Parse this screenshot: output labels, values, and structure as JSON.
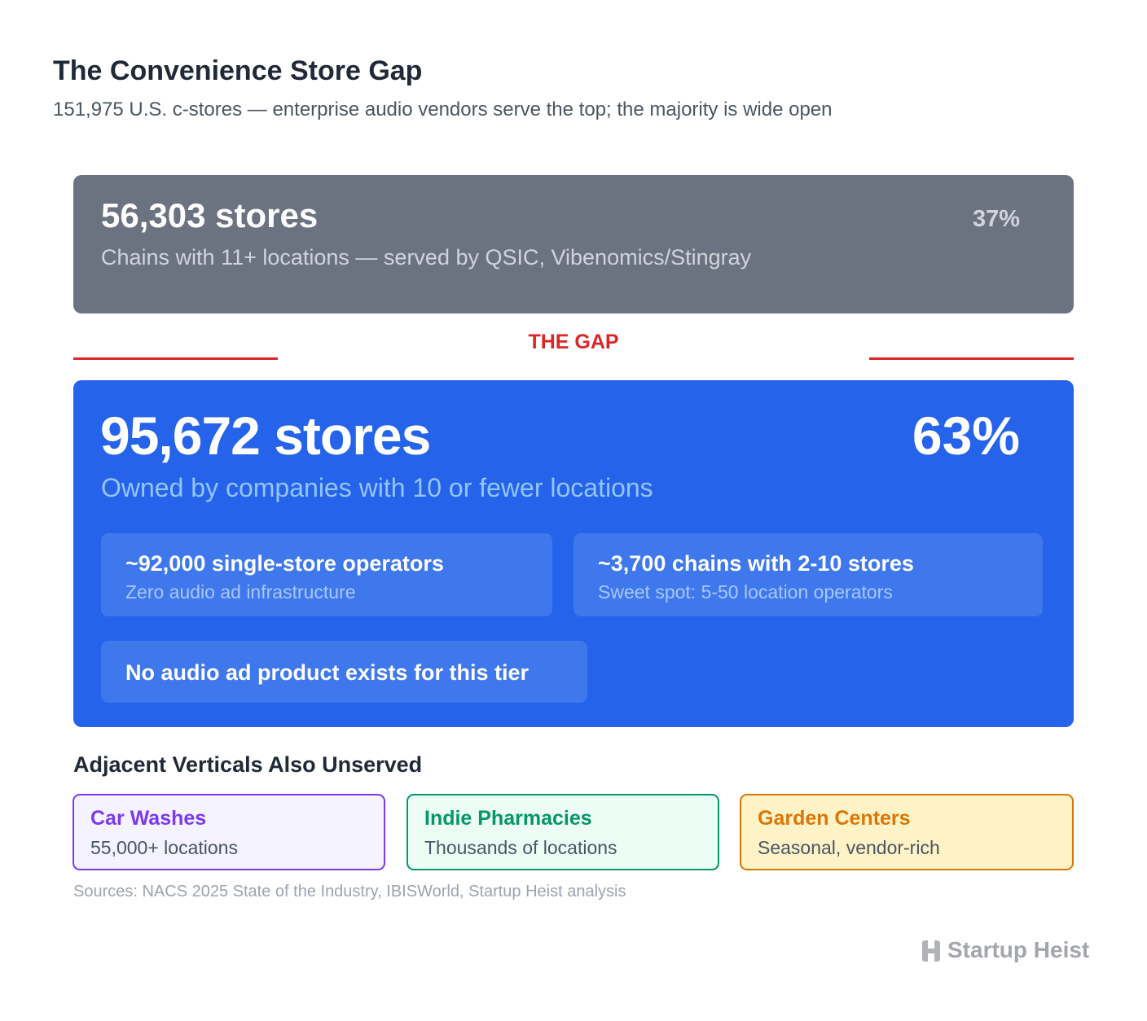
{
  "header": {
    "title": "The Convenience Store Gap",
    "subtitle": "151,975 U.S. c-stores — enterprise audio vendors serve the top; the majority is wide open"
  },
  "top_tier": {
    "count": "56,303 stores",
    "share": "37%",
    "description": "Chains with 11+ locations — served by QSIC, Vibenomics/Stingray"
  },
  "gap_label": "THE GAP",
  "bottom_tier": {
    "count": "95,672 stores",
    "share": "63%",
    "description": "Owned by companies with 10 or fewer locations",
    "cards": [
      {
        "title": "~92,000 single-store operators",
        "note": "Zero audio ad infrastructure"
      },
      {
        "title": "~3,700 chains with 2-10 stores",
        "note": "Sweet spot: 5-50 location operators"
      },
      {
        "title": "No audio ad product exists for this tier"
      }
    ]
  },
  "adjacent": {
    "heading": "Adjacent Verticals Also Unserved",
    "items": [
      {
        "name": "Car Washes",
        "detail": "55,000+ locations"
      },
      {
        "name": "Indie Pharmacies",
        "detail": "Thousands of locations"
      },
      {
        "name": "Garden Centers",
        "detail": "Seasonal, vendor-rich"
      }
    ]
  },
  "sources": "Sources: NACS 2025 State of the Industry, IBISWorld, Startup Heist analysis",
  "brand": "Startup Heist"
}
